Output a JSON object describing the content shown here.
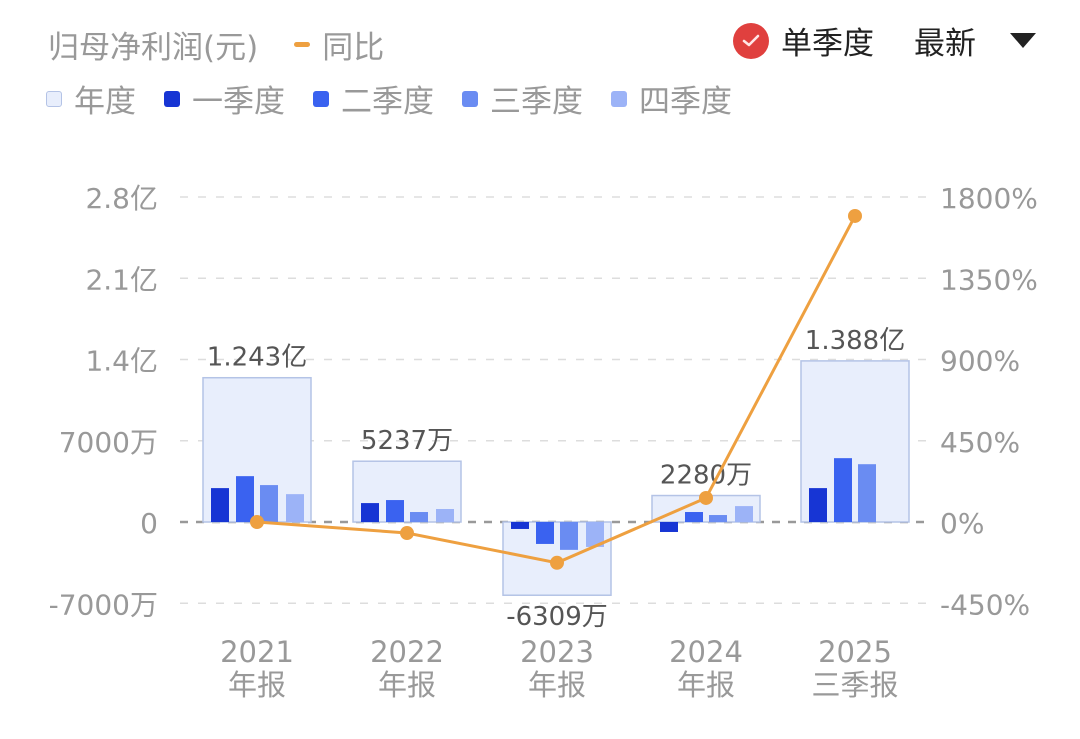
{
  "header": {
    "title": "归母净利润(元)",
    "line_legend": "同比",
    "toggle_label": "单季度",
    "toggle_checked": true,
    "dropdown_value": "最新"
  },
  "legend": [
    {
      "label": "年度",
      "color": "#e8eefc",
      "border": "#b4c3e6"
    },
    {
      "label": "一季度",
      "color": "#1735d4"
    },
    {
      "label": "二季度",
      "color": "#3a62f0"
    },
    {
      "label": "三季度",
      "color": "#6a8cf2"
    },
    {
      "label": "四季度",
      "color": "#9cb3f7"
    }
  ],
  "colors": {
    "line": "#eea040",
    "check": "#e0403e",
    "grid": "#dddddd",
    "axis_text": "#999999",
    "label_text": "#555555"
  },
  "chart_data": {
    "type": "bar",
    "title": "归母净利润(元)",
    "xlabel": "",
    "ylabel": "归母净利润",
    "y2label": "同比",
    "categories": [
      "2021\n年报",
      "2022\n年报",
      "2023\n年报",
      "2024\n年报",
      "2025\n三季报"
    ],
    "category_years": [
      "2021",
      "2022",
      "2023",
      "2024",
      "2025"
    ],
    "category_periods": [
      "年报",
      "年报",
      "年报",
      "年报",
      "三季报"
    ],
    "yticks": [
      "2.8亿",
      "2.1亿",
      "1.4亿",
      "7000万",
      "0",
      "-7000万"
    ],
    "ytick_values": [
      28000,
      21000,
      14000,
      7000,
      0,
      -7000
    ],
    "y2ticks": [
      "1800%",
      "1350%",
      "900%",
      "450%",
      "0%",
      "-450%"
    ],
    "y2tick_values": [
      1800,
      1350,
      900,
      450,
      0,
      -450
    ],
    "ylim": [
      -7000,
      28000
    ],
    "y2lim": [
      -450,
      1800
    ],
    "unit": "万元",
    "grid": true,
    "legend_position": "top",
    "annual_labels": [
      "1.243亿",
      "5237万",
      "-6309万",
      "2280万",
      "1.388亿"
    ],
    "series": [
      {
        "name": "年度",
        "type": "bar",
        "values": [
          12430,
          5237,
          -6309,
          2280,
          13880
        ]
      },
      {
        "name": "一季度",
        "type": "bar",
        "values": [
          2920,
          1630,
          -600,
          -860,
          2920
        ]
      },
      {
        "name": "二季度",
        "type": "bar",
        "values": [
          3950,
          1890,
          -1890,
          860,
          5500
        ]
      },
      {
        "name": "三季度",
        "type": "bar",
        "values": [
          3180,
          860,
          -2400,
          600,
          4980
        ]
      },
      {
        "name": "四季度",
        "type": "bar",
        "values": [
          2400,
          1120,
          -2150,
          1370,
          null
        ]
      },
      {
        "name": "同比",
        "type": "line",
        "axis": "right",
        "values": [
          0,
          -61,
          -226,
          133,
          1695
        ]
      }
    ]
  }
}
